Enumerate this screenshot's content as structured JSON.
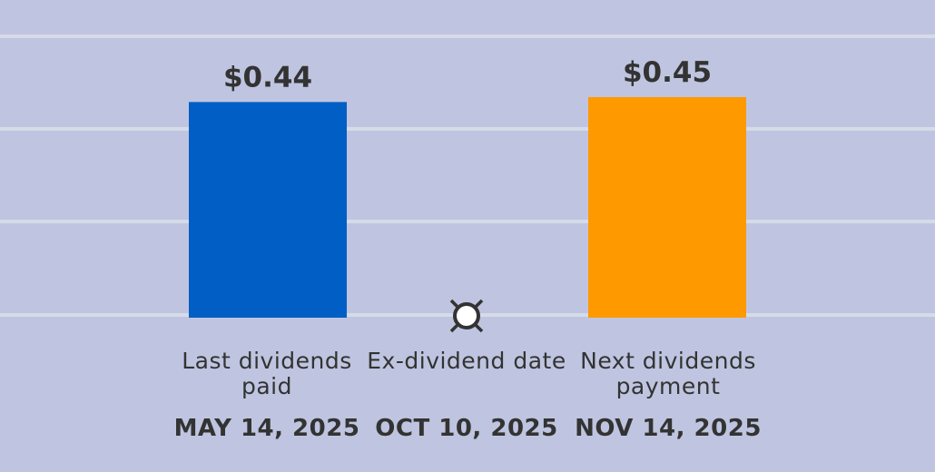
{
  "chart_data": {
    "type": "bar",
    "categories": [
      "Last dividends paid",
      "Ex-dividend date",
      "Next dividends payment"
    ],
    "dates": [
      "MAY 14, 2025",
      "OCT 10, 2025",
      "NOV 14, 2025"
    ],
    "values": [
      0.44,
      null,
      0.45
    ],
    "data_labels": [
      "$0.44",
      "",
      "$0.45"
    ],
    "colors": [
      "#005ec4",
      null,
      "#ff9900"
    ],
    "marker": {
      "category": "Ex-dividend date",
      "icon": "ex-dividend-marker-icon"
    },
    "grid": true,
    "background": "#bfc5e0"
  }
}
